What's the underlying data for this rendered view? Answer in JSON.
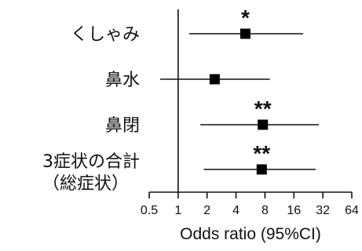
{
  "chart_data": {
    "type": "forest",
    "xlabel": "Odds ratio (95%CI)",
    "x_scale": "log2",
    "xlim": [
      0.5,
      64
    ],
    "reference_line": 1,
    "x_ticks": [
      "0.5",
      "1",
      "2",
      "4",
      "8",
      "16",
      "32",
      "64"
    ],
    "rows": [
      {
        "label": [
          "くしゃみ"
        ],
        "or": 5,
        "ci": [
          1.3,
          20
        ],
        "marker": "*"
      },
      {
        "label": [
          "鼻水"
        ],
        "or": 2.4,
        "ci": [
          0.65,
          9
        ],
        "marker": ""
      },
      {
        "label": [
          "鼻閉"
        ],
        "or": 7.6,
        "ci": [
          1.7,
          29
        ],
        "marker": "**"
      },
      {
        "label": [
          "3症状の合計",
          "（総症状）"
        ],
        "or": 7.4,
        "ci": [
          1.85,
          27
        ],
        "marker": "**"
      }
    ]
  }
}
